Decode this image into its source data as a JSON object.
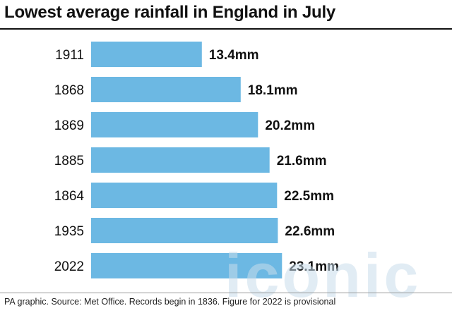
{
  "title": "Lowest average rainfall in England in July",
  "source": "PA graphic. Source: Met Office. Records begin in 1836. Figure for 2022 is provisional",
  "watermark": "iconic",
  "colors": {
    "bar": "#6cb8e3",
    "text": "#111111"
  },
  "chart_data": {
    "type": "bar",
    "orientation": "horizontal",
    "title": "Lowest average rainfall in England in July",
    "categories": [
      "1911",
      "1868",
      "1869",
      "1885",
      "1864",
      "1935",
      "2022"
    ],
    "values": [
      13.4,
      18.1,
      20.2,
      21.6,
      22.5,
      22.6,
      23.1
    ],
    "value_labels": [
      "13.4mm",
      "18.1mm",
      "20.2mm",
      "21.6mm",
      "22.5mm",
      "22.6mm",
      "23.1mm"
    ],
    "unit": "mm",
    "grid": false,
    "legend": "none"
  }
}
